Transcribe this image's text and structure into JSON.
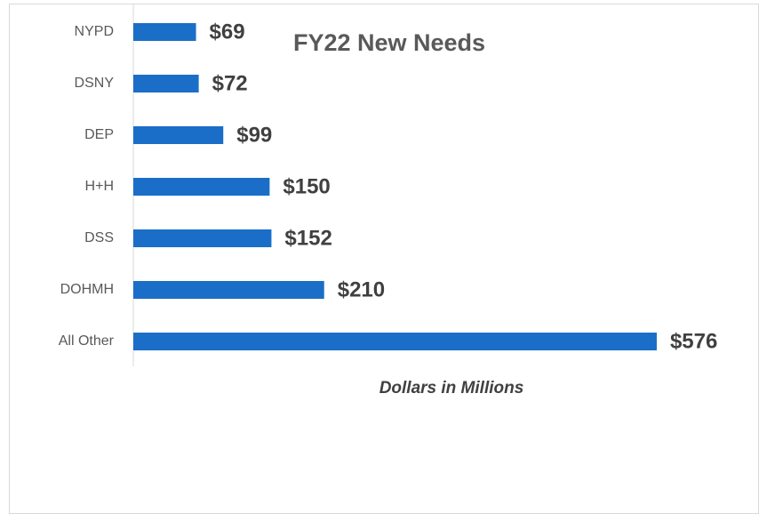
{
  "chart_data": {
    "type": "barh",
    "title": "FY22 New Needs",
    "x_label": "Dollars in Millions",
    "categories": [
      "NYPD",
      "DSNY",
      "DEP",
      "H+H",
      "DSS",
      "DOHMH",
      "All Other"
    ],
    "values": [
      69,
      72,
      99,
      150,
      152,
      210,
      576
    ],
    "value_labels": [
      "$69",
      "$72",
      "$99",
      "$150",
      "$152",
      "$210",
      "$576"
    ],
    "color": "#1a6ec8",
    "xlim": [
      0,
      600
    ]
  }
}
